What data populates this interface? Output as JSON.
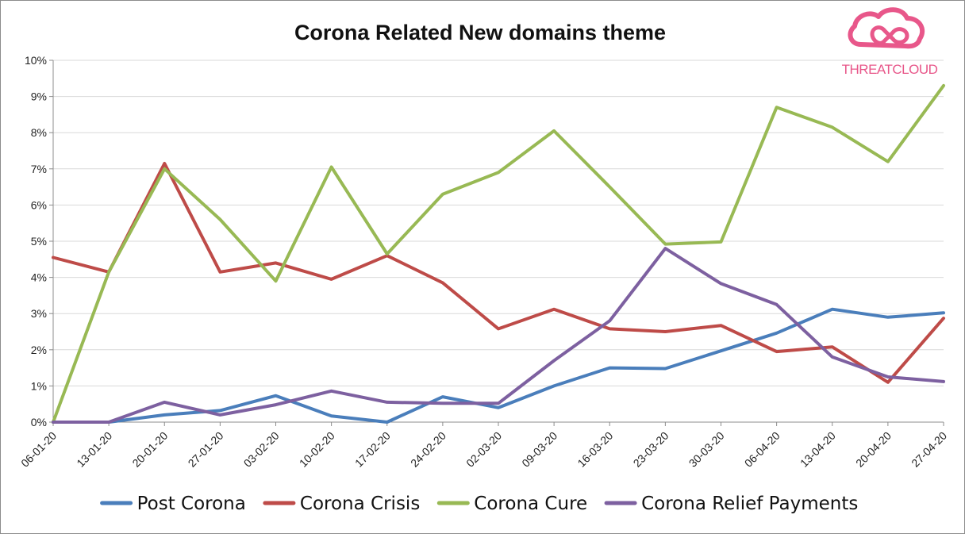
{
  "chart_data": {
    "type": "line",
    "title": "Corona Related New domains theme",
    "xlabel": "",
    "ylabel": "",
    "categories": [
      "06-01-20",
      "13-01-20",
      "20-01-20",
      "27-01-20",
      "03-02-20",
      "10-02-20",
      "17-02-20",
      "24-02-20",
      "02-03-20",
      "09-03-20",
      "16-03-20",
      "23-03-20",
      "30-03-20",
      "06-04-20",
      "13-04-20",
      "20-04-20",
      "27-04-20"
    ],
    "y_ticks": [
      "0%",
      "1%",
      "2%",
      "3%",
      "4%",
      "5%",
      "6%",
      "7%",
      "8%",
      "9%",
      "10%"
    ],
    "ylim": [
      0,
      10
    ],
    "y_unit": "%",
    "grid": true,
    "legend_position": "bottom",
    "series": [
      {
        "name": "Post Corona",
        "color": "#4a7ebb",
        "values": [
          0,
          0,
          0.2,
          0.32,
          0.73,
          0.17,
          0.0,
          0.7,
          0.4,
          1.0,
          1.5,
          1.48,
          1.97,
          2.46,
          3.12,
          2.9,
          3.02
        ]
      },
      {
        "name": "Corona Crisis",
        "color": "#be4b48",
        "values": [
          4.55,
          4.15,
          7.15,
          4.15,
          4.4,
          3.95,
          4.6,
          3.85,
          2.58,
          3.12,
          2.58,
          2.5,
          2.67,
          1.95,
          2.08,
          1.1,
          2.87
        ]
      },
      {
        "name": "Corona Cure",
        "color": "#98b954",
        "values": [
          0,
          4.15,
          7.0,
          5.6,
          3.9,
          7.05,
          4.65,
          6.3,
          6.9,
          8.05,
          6.5,
          4.92,
          4.98,
          8.7,
          8.15,
          7.2,
          9.3
        ]
      },
      {
        "name": "Corona Relief Payments",
        "color": "#7d60a0",
        "values": [
          0,
          0,
          0.55,
          0.2,
          0.48,
          0.86,
          0.55,
          0.52,
          0.52,
          1.7,
          2.8,
          4.8,
          3.83,
          3.25,
          1.8,
          1.25,
          1.12
        ]
      }
    ]
  },
  "logo": {
    "text": "THREATCLOUD",
    "icon": "cloud-infinity-icon",
    "color": "#e8578a"
  }
}
